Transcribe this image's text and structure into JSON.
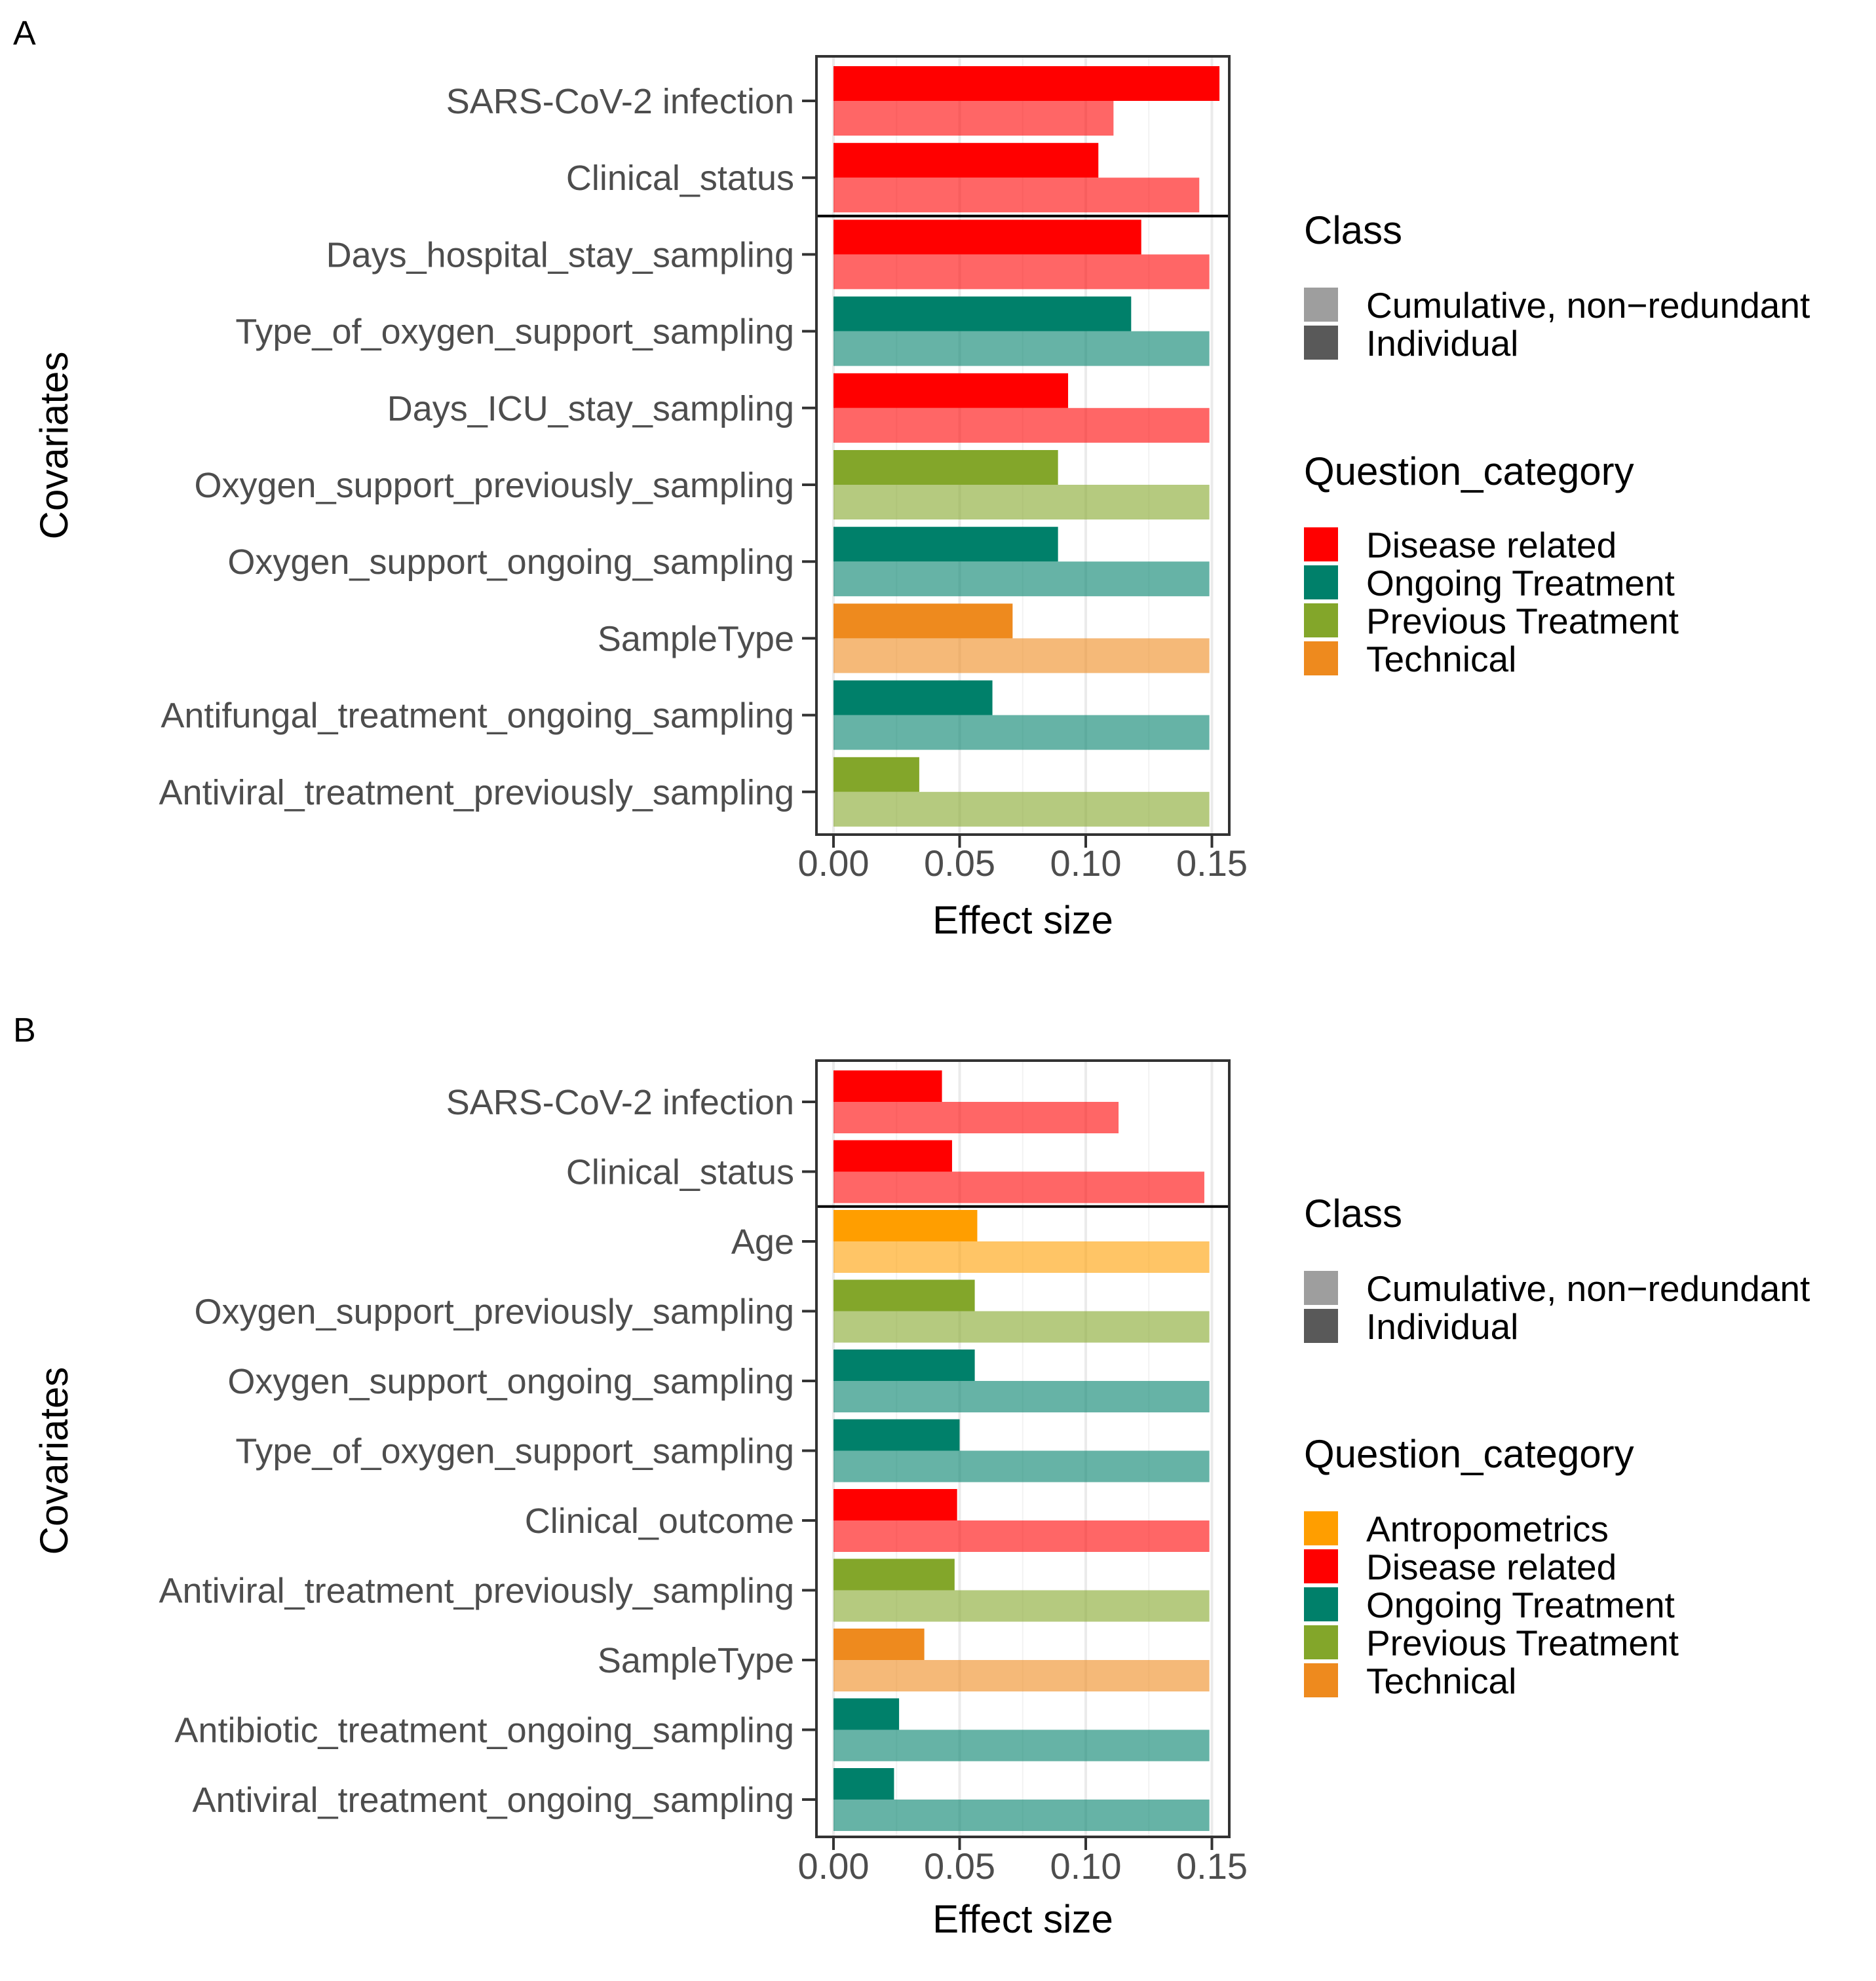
{
  "chart_data": [
    {
      "type": "bar",
      "panel": "A",
      "orientation": "horizontal",
      "xlabel": "Effect size",
      "ylabel": "Covariates",
      "xlim": [
        0,
        0.16
      ],
      "x_ticks": [
        0,
        0.05,
        0.1,
        0.15
      ],
      "x_tick_labels": [
        "0.00",
        "0.05",
        "0.10",
        "0.15"
      ],
      "grid": true,
      "series_names": [
        "Individual",
        "Cumulative, non-redundant"
      ],
      "categories": [
        {
          "label": "SARS-CoV-2 infection",
          "category": "Disease related",
          "individual": 0.153,
          "cumulative": 0.111
        },
        {
          "label": "Clinical_status",
          "category": "Disease related",
          "individual": 0.105,
          "cumulative": 0.145
        },
        {
          "label": "Days_hospital_stay_sampling",
          "category": "Disease related",
          "individual": 0.122,
          "cumulative": 0.149
        },
        {
          "label": "Type_of_oxygen_support_sampling",
          "category": "Ongoing Treatment",
          "individual": 0.118,
          "cumulative": 0.149
        },
        {
          "label": "Days_ICU_stay_sampling",
          "category": "Disease related",
          "individual": 0.093,
          "cumulative": 0.149
        },
        {
          "label": "Oxygen_support_previously_sampling",
          "category": "Previous Treatment",
          "individual": 0.089,
          "cumulative": 0.149
        },
        {
          "label": "Oxygen_support_ongoing_sampling",
          "category": "Ongoing Treatment",
          "individual": 0.089,
          "cumulative": 0.149
        },
        {
          "label": "SampleType",
          "category": "Technical",
          "individual": 0.071,
          "cumulative": 0.149
        },
        {
          "label": "Antifungal_treatment_ongoing_sampling",
          "category": "Ongoing Treatment",
          "individual": 0.063,
          "cumulative": 0.149
        },
        {
          "label": "Antiviral_treatment_previously_sampling",
          "category": "Previous Treatment",
          "individual": 0.034,
          "cumulative": 0.149
        }
      ],
      "separator_after_index": 1,
      "legend": {
        "class_title": "Class",
        "class_items": [
          {
            "label": "Cumulative, non−redundant",
            "color": "#9e9e9e"
          },
          {
            "label": "Individual",
            "color": "#595959"
          }
        ],
        "category_title": "Question_category",
        "category_items": [
          {
            "label": "Disease related",
            "color": "#ff0000"
          },
          {
            "label": "Ongoing Treatment",
            "color": "#00806a"
          },
          {
            "label": "Previous Treatment",
            "color": "#83a62a"
          },
          {
            "label": "Technical",
            "color": "#ee8a1e"
          }
        ]
      }
    },
    {
      "type": "bar",
      "panel": "B",
      "orientation": "horizontal",
      "xlabel": "Effect size",
      "ylabel": "Covariates",
      "xlim": [
        0,
        0.155
      ],
      "x_ticks": [
        0,
        0.05,
        0.1,
        0.15
      ],
      "x_tick_labels": [
        "0.00",
        "0.05",
        "0.10",
        "0.15"
      ],
      "grid": true,
      "series_names": [
        "Individual",
        "Cumulative, non-redundant"
      ],
      "categories": [
        {
          "label": "SARS-CoV-2 infection",
          "category": "Disease related",
          "individual": 0.043,
          "cumulative": 0.113
        },
        {
          "label": "Clinical_status",
          "category": "Disease related",
          "individual": 0.047,
          "cumulative": 0.147
        },
        {
          "label": "Age",
          "category": "Antropometrics",
          "individual": 0.057,
          "cumulative": 0.149
        },
        {
          "label": "Oxygen_support_previously_sampling",
          "category": "Previous Treatment",
          "individual": 0.056,
          "cumulative": 0.149
        },
        {
          "label": "Oxygen_support_ongoing_sampling",
          "category": "Ongoing Treatment",
          "individual": 0.056,
          "cumulative": 0.149
        },
        {
          "label": "Type_of_oxygen_support_sampling",
          "category": "Ongoing Treatment",
          "individual": 0.05,
          "cumulative": 0.149
        },
        {
          "label": "Clinical_outcome",
          "category": "Disease related",
          "individual": 0.049,
          "cumulative": 0.149
        },
        {
          "label": "Antiviral_treatment_previously_sampling",
          "category": "Previous Treatment",
          "individual": 0.048,
          "cumulative": 0.149
        },
        {
          "label": "SampleType",
          "category": "Technical",
          "individual": 0.036,
          "cumulative": 0.149
        },
        {
          "label": "Antibiotic_treatment_ongoing_sampling",
          "category": "Ongoing Treatment",
          "individual": 0.026,
          "cumulative": 0.149
        },
        {
          "label": "Antiviral_treatment_ongoing_sampling",
          "category": "Ongoing Treatment",
          "individual": 0.024,
          "cumulative": 0.149
        }
      ],
      "separator_after_index": 1,
      "legend": {
        "class_title": "Class",
        "class_items": [
          {
            "label": "Cumulative, non−redundant",
            "color": "#9e9e9e"
          },
          {
            "label": "Individual",
            "color": "#595959"
          }
        ],
        "category_title": "Question_category",
        "category_items": [
          {
            "label": "Antropometrics",
            "color": "#ff9e00"
          },
          {
            "label": "Disease related",
            "color": "#ff0000"
          },
          {
            "label": "Ongoing Treatment",
            "color": "#00806a"
          },
          {
            "label": "Previous Treatment",
            "color": "#83a62a"
          },
          {
            "label": "Technical",
            "color": "#ee8a1e"
          }
        ]
      }
    }
  ]
}
